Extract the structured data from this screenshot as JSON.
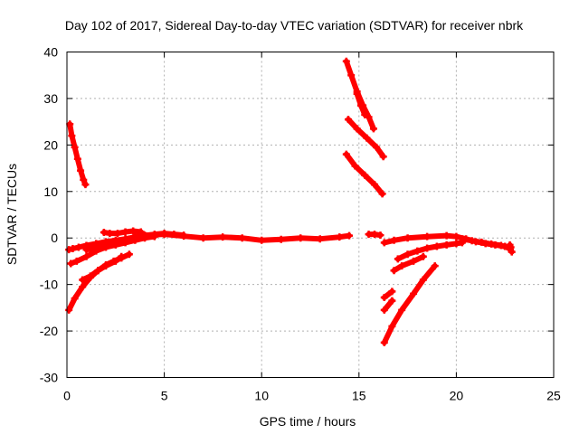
{
  "chart_data": {
    "type": "scatter",
    "title": "Day 102 of 2017, Sidereal Day-to-day VTEC variation (SDTVAR) for receiver nbrk",
    "xlabel": "GPS time / hours",
    "ylabel": "SDTVAR / TECUs",
    "xlim": [
      0,
      25
    ],
    "ylim": [
      -30,
      40
    ],
    "xticks": [
      0,
      5,
      10,
      15,
      20,
      25
    ],
    "yticks": [
      -30,
      -20,
      -10,
      0,
      10,
      20,
      30,
      40
    ],
    "xtick_labels": [
      "0",
      "5",
      "10",
      "15",
      "20",
      "25"
    ],
    "ytick_labels": [
      "-30",
      "-20",
      "-10",
      "0",
      "10",
      "20",
      "30",
      "40"
    ],
    "grid": true,
    "legend": "none",
    "color": "#ff0000",
    "series": [
      {
        "x": [
          0.15,
          0.25,
          0.4,
          0.55,
          0.7,
          0.85,
          0.95
        ],
        "y": [
          24.5,
          22,
          19.5,
          17,
          14.5,
          12.5,
          11.5
        ]
      },
      {
        "x": [
          0.1,
          0.3,
          0.6,
          1.0,
          1.5,
          2.0,
          2.5,
          3.0,
          3.5,
          4.0,
          5.0,
          6.0,
          7.0,
          8.0,
          9.0,
          10.0,
          11.0,
          12.0,
          13.0,
          14.0,
          14.5
        ],
        "y": [
          -2.5,
          -2.3,
          -2.0,
          -1.6,
          -1.2,
          -0.8,
          -0.5,
          -0.2,
          0.2,
          0.6,
          0.8,
          0.4,
          0.0,
          0.2,
          0.0,
          -0.5,
          -0.3,
          0.0,
          -0.2,
          0.2,
          0.5
        ]
      },
      {
        "x": [
          0.2,
          0.5,
          1.0,
          1.5,
          2.0,
          2.5,
          3.0,
          3.5,
          4.0,
          4.5
        ],
        "y": [
          -5.5,
          -5.0,
          -4.0,
          -2.8,
          -2.0,
          -1.5,
          -1.0,
          -0.5,
          0.0,
          0.3
        ]
      },
      {
        "x": [
          1.0,
          1.5,
          2.0,
          2.5,
          3.0,
          3.5,
          4.0,
          4.5,
          5.0,
          5.5,
          6.0
        ],
        "y": [
          -2.5,
          -2.2,
          -1.8,
          -1.0,
          -0.5,
          0.0,
          0.5,
          0.8,
          1.0,
          0.8,
          0.6
        ]
      },
      {
        "x": [
          1.9,
          2.2,
          2.6,
          3.0,
          3.4,
          3.8
        ],
        "y": [
          1.2,
          1.0,
          1.0,
          1.3,
          1.5,
          1.3
        ]
      },
      {
        "x": [
          0.1,
          0.4,
          0.8,
          1.2,
          1.6,
          2.0,
          2.4,
          2.8,
          3.2
        ],
        "y": [
          -15.5,
          -13.0,
          -10.5,
          -8.5,
          -7.0,
          -5.8,
          -5.0,
          -4.3,
          -3.5
        ]
      },
      {
        "x": [
          0.8,
          1.2,
          1.6,
          2.0,
          2.5,
          2.8
        ],
        "y": [
          -9.0,
          -8.2,
          -7.0,
          -6.0,
          -5.0,
          -4.0
        ]
      },
      {
        "x": [
          14.35,
          14.6,
          14.9,
          15.2,
          15.5,
          15.75
        ],
        "y": [
          38,
          35,
          31.5,
          28.5,
          26,
          23.5
        ]
      },
      {
        "x": [
          14.9,
          15.1,
          15.3
        ],
        "y": [
          31,
          28.5,
          26.5
        ]
      },
      {
        "x": [
          14.45,
          14.9,
          15.4,
          15.9,
          16.25
        ],
        "y": [
          25.5,
          23.5,
          21.5,
          19.5,
          17.5
        ]
      },
      {
        "x": [
          14.35,
          14.8,
          15.3,
          15.8,
          16.2
        ],
        "y": [
          18,
          15.5,
          13.5,
          11.5,
          9.5
        ]
      },
      {
        "x": [
          15.5,
          15.8,
          16.1
        ],
        "y": [
          0.8,
          0.8,
          0.6
        ]
      },
      {
        "x": [
          16.3,
          16.8,
          17.5,
          18.5,
          19.5,
          20.0,
          20.5,
          21.0,
          21.5,
          22.0,
          22.5,
          22.8
        ],
        "y": [
          -1.0,
          -0.5,
          0.0,
          0.3,
          0.5,
          0.3,
          -0.2,
          -0.8,
          -1.2,
          -1.5,
          -1.8,
          -2.0
        ]
      },
      {
        "x": [
          17.0,
          17.5,
          18.0,
          18.5,
          19.0,
          19.5,
          20.0,
          20.3
        ],
        "y": [
          -4.5,
          -3.5,
          -2.8,
          -2.2,
          -1.8,
          -1.5,
          -1.2,
          -1.0
        ]
      },
      {
        "x": [
          16.8,
          17.2,
          17.8,
          18.3
        ],
        "y": [
          -7.0,
          -6.0,
          -5.0,
          -4.0
        ]
      },
      {
        "x": [
          16.3,
          16.7
        ],
        "y": [
          -12.8,
          -11.5
        ]
      },
      {
        "x": [
          16.3,
          16.7
        ],
        "y": [
          -15.5,
          -13.5
        ]
      },
      {
        "x": [
          16.3,
          16.7,
          17.2,
          17.8,
          18.3,
          18.9
        ],
        "y": [
          -22.5,
          -19.0,
          -15.5,
          -12.0,
          -9.0,
          -6.0
        ]
      },
      {
        "x": [
          20.3,
          20.8,
          21.3,
          21.8,
          22.3,
          22.7
        ],
        "y": [
          -0.2,
          -0.6,
          -0.9,
          -1.3,
          -1.6,
          -2.2
        ]
      },
      {
        "x": [
          22.75,
          22.85
        ],
        "y": [
          -1.5,
          -3.0
        ]
      }
    ]
  }
}
